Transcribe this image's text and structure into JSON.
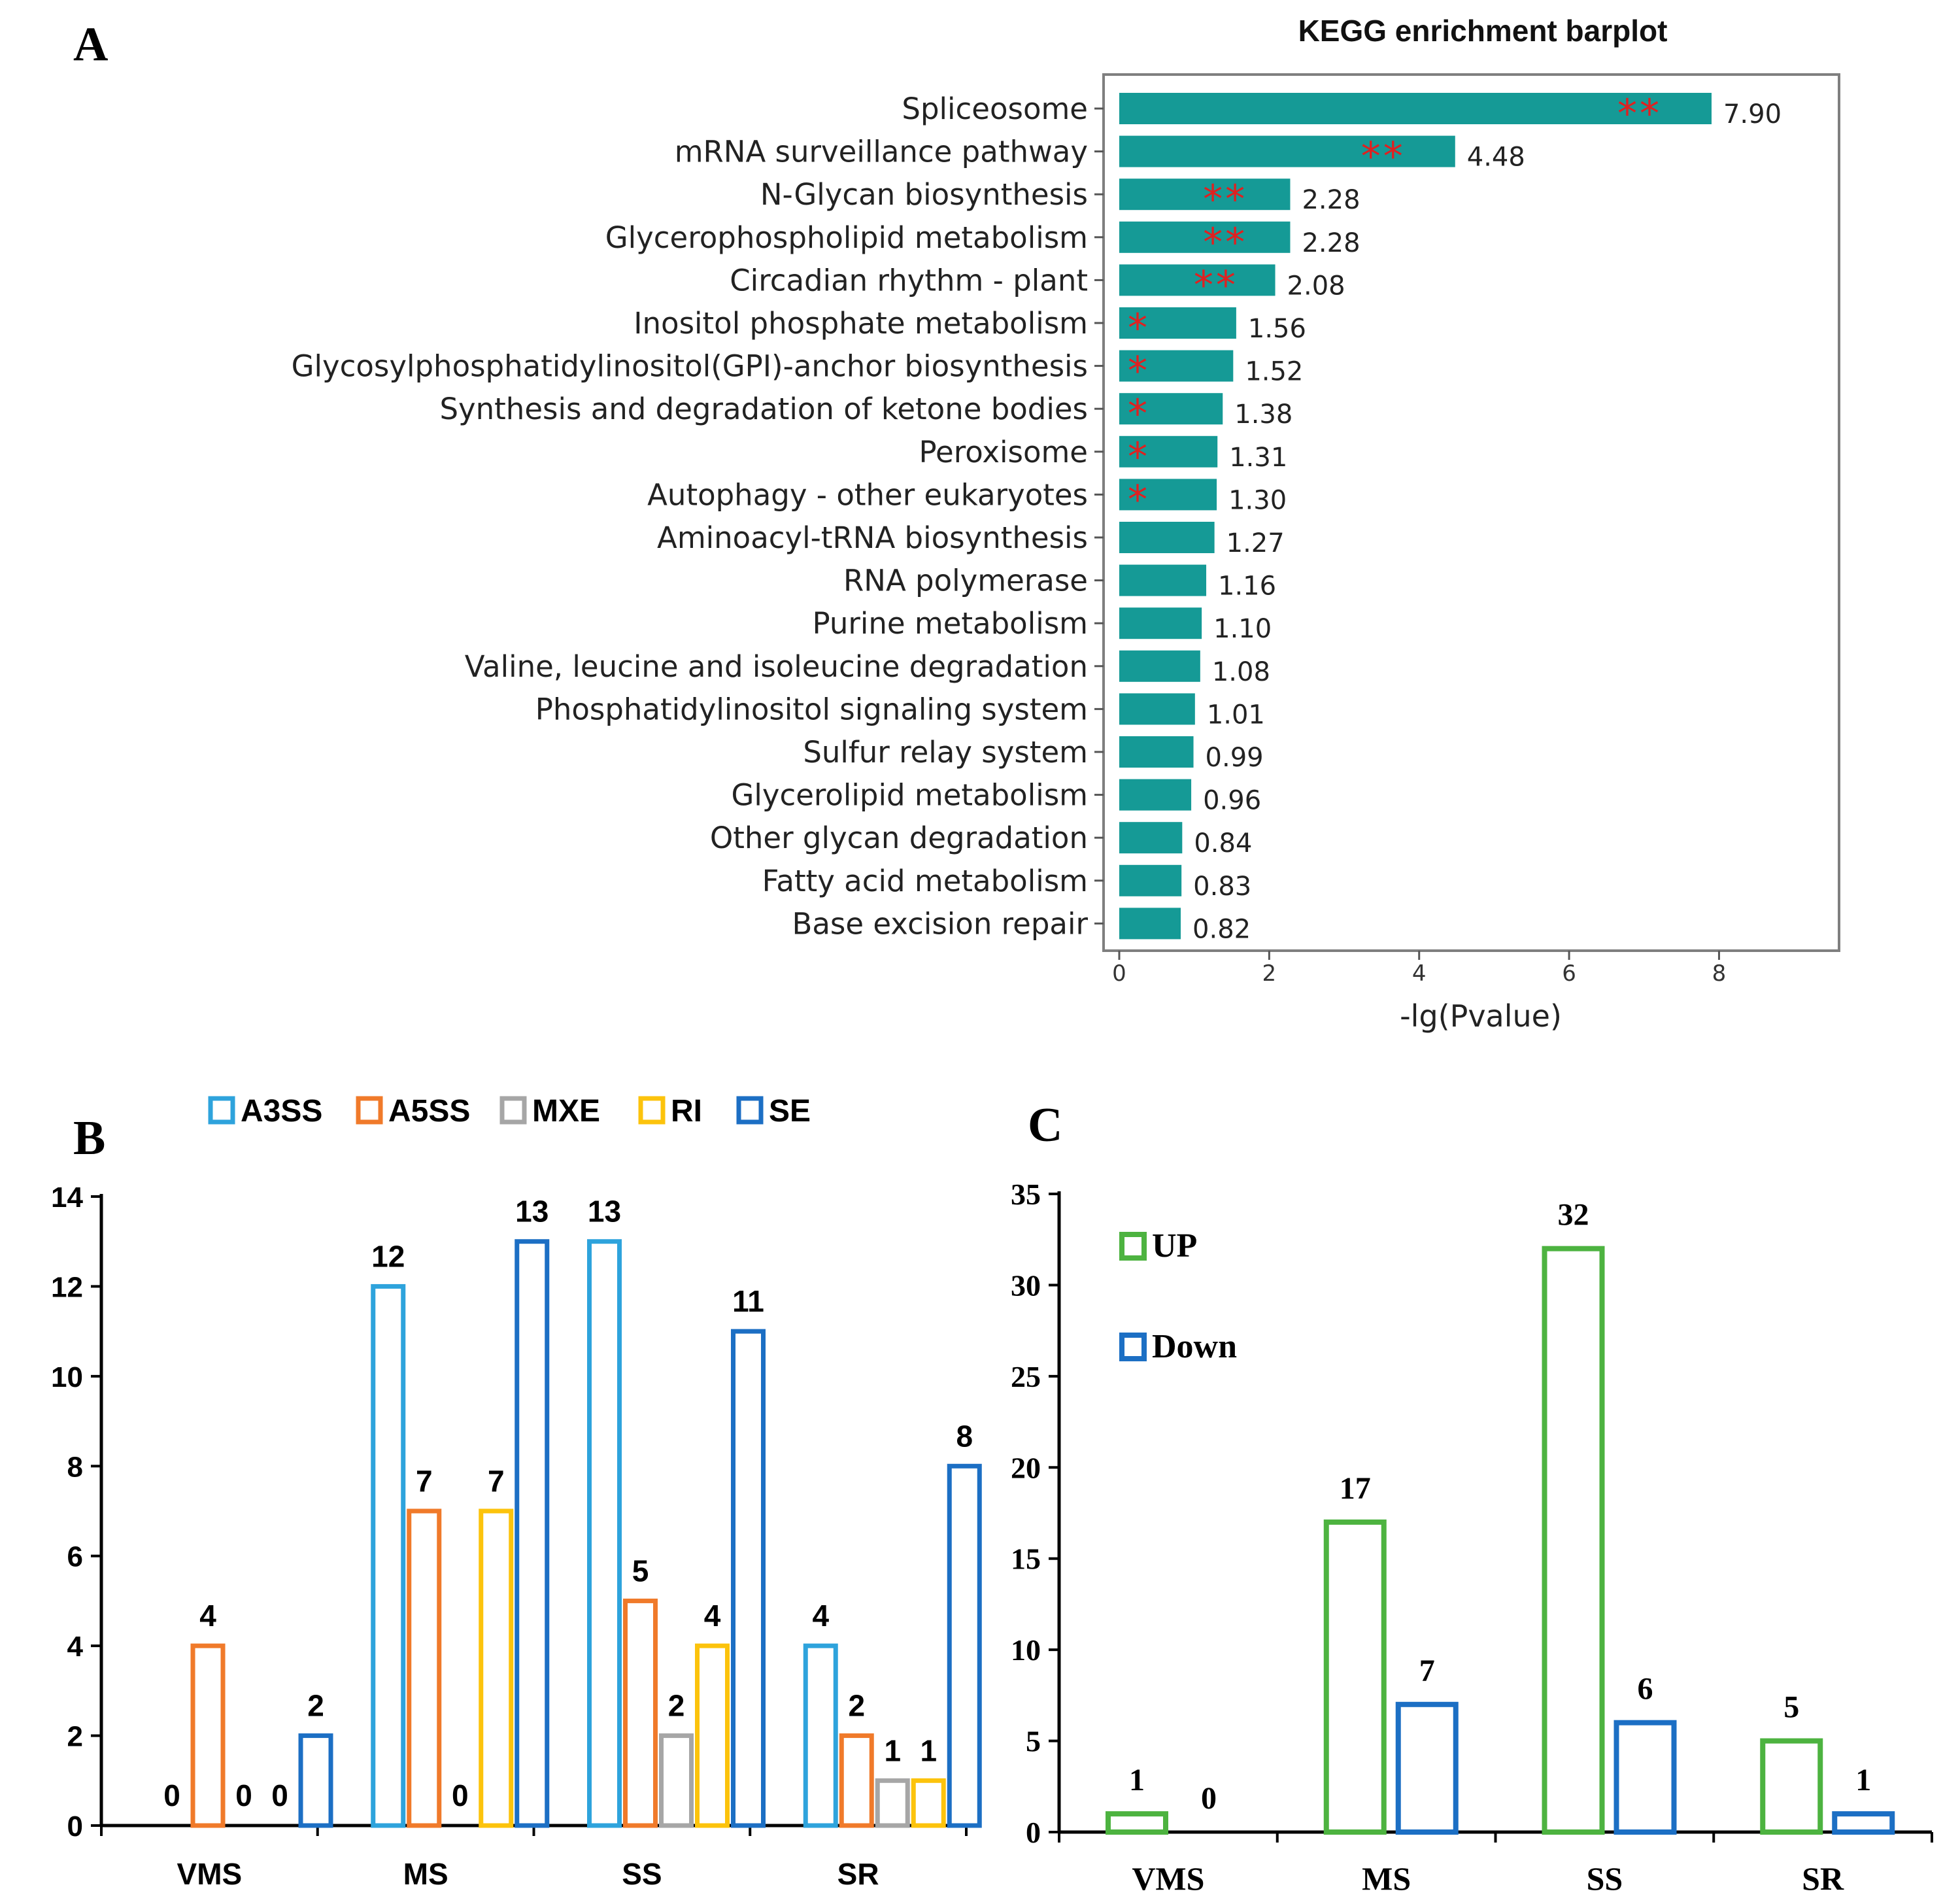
{
  "chart_data": [
    {
      "panel": "A",
      "type": "bar",
      "orientation": "horizontal",
      "title": "KEGG enrichment barplot",
      "xlabel": "-lg(Pvalue)",
      "ylabel": "",
      "xlim": [
        0,
        9.4
      ],
      "xticks": [
        "0",
        "2",
        "4",
        "6",
        "8"
      ],
      "bar_color": "#159a96",
      "star_color": "#e02020",
      "categories": [
        "Spliceosome",
        "mRNA surveillance pathway",
        "N-Glycan biosynthesis",
        "Glycerophospholipid metabolism",
        "Circadian rhythm - plant",
        "Inositol phosphate metabolism",
        "Glycosylphosphatidylinositol(GPI)-anchor biosynthesis",
        "Synthesis and degradation of ketone bodies",
        "Peroxisome",
        "Autophagy - other eukaryotes",
        "Aminoacyl-tRNA biosynthesis",
        "RNA polymerase",
        "Purine metabolism",
        "Valine, leucine and isoleucine degradation",
        "Phosphatidylinositol signaling system",
        "Sulfur relay system",
        "Glycerolipid metabolism",
        "Other glycan degradation",
        "Fatty acid metabolism",
        "Base excision repair"
      ],
      "values": [
        7.9,
        4.48,
        2.28,
        2.28,
        2.08,
        1.56,
        1.52,
        1.38,
        1.31,
        1.3,
        1.27,
        1.16,
        1.1,
        1.08,
        1.01,
        0.99,
        0.96,
        0.84,
        0.83,
        0.82
      ],
      "value_labels": [
        "7.90",
        "4.48",
        "2.28",
        "2.28",
        "2.08",
        "1.56",
        "1.52",
        "1.38",
        "1.31",
        "1.30",
        "1.27",
        "1.16",
        "1.10",
        "1.08",
        "1.01",
        "0.99",
        "0.96",
        "0.84",
        "0.83",
        "0.82"
      ],
      "significance": [
        "**",
        "**",
        "**",
        "**",
        "**",
        "*",
        "*",
        "*",
        "*",
        "*",
        "",
        "",
        "",
        "",
        "",
        "",
        "",
        "",
        "",
        ""
      ]
    },
    {
      "panel": "B",
      "type": "bar",
      "title": "",
      "xlabel": "",
      "ylabel": "",
      "ylim": [
        0,
        14
      ],
      "yticks": [
        "0",
        "2",
        "4",
        "6",
        "8",
        "10",
        "12",
        "14"
      ],
      "categories": [
        "VMS",
        "MS",
        "SS",
        "SR"
      ],
      "legend_position": "top",
      "series": [
        {
          "name": "A3SS",
          "color": "#2ea3dc",
          "values": [
            0,
            12,
            13,
            4
          ],
          "labels": [
            "0",
            "12",
            "13",
            "4"
          ]
        },
        {
          "name": "A5SS",
          "color": "#f07a2a",
          "values": [
            4,
            7,
            5,
            2
          ],
          "labels": [
            "4",
            "7",
            "5",
            "2"
          ]
        },
        {
          "name": "MXE",
          "color": "#a6a6a6",
          "values": [
            0,
            0,
            2,
            1
          ],
          "labels": [
            "0",
            "0",
            "2",
            "1"
          ]
        },
        {
          "name": "RI",
          "color": "#fcc30c",
          "values": [
            0,
            7,
            4,
            1
          ],
          "labels": [
            "0",
            "7",
            "4",
            "1"
          ]
        },
        {
          "name": "SE",
          "color": "#1c6fc4",
          "values": [
            2,
            13,
            11,
            8
          ],
          "labels": [
            "2",
            "13",
            "11",
            "8"
          ]
        }
      ]
    },
    {
      "panel": "C",
      "type": "bar",
      "title": "",
      "xlabel": "",
      "ylabel": "",
      "ylim": [
        0,
        35
      ],
      "yticks": [
        "0",
        "5",
        "10",
        "15",
        "20",
        "25",
        "30",
        "35"
      ],
      "categories": [
        "VMS",
        "MS",
        "SS",
        "SR"
      ],
      "legend_position": "top-left",
      "series": [
        {
          "name": "UP",
          "color": "#4db340",
          "values": [
            1,
            17,
            32,
            5
          ],
          "labels": [
            "1",
            "17",
            "32",
            "5"
          ]
        },
        {
          "name": "Down",
          "color": "#1c6fc4",
          "values": [
            0,
            7,
            6,
            1
          ],
          "labels": [
            "0",
            "7",
            "6",
            "1"
          ]
        }
      ]
    }
  ],
  "panel_letters": {
    "a": "A",
    "b": "B",
    "c": "C"
  }
}
